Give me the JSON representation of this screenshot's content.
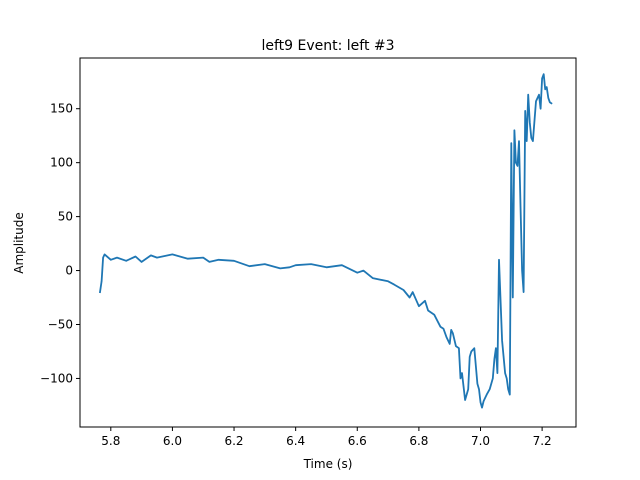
{
  "chart_data": {
    "type": "line",
    "title": "left9 Event: left #3",
    "xlabel": "Time (s)",
    "ylabel": "Amplitude",
    "xlim": [
      5.7,
      7.31
    ],
    "ylim": [
      -145,
      197
    ],
    "xticks": [
      5.8,
      6.0,
      6.2,
      6.4,
      6.6,
      6.8,
      7.0,
      7.2
    ],
    "yticks": [
      -100,
      -50,
      0,
      50,
      100,
      150
    ],
    "xtick_labels": [
      "5.8",
      "6.0",
      "6.2",
      "6.4",
      "6.6",
      "6.8",
      "7.0",
      "7.2"
    ],
    "ytick_labels": [
      "−100",
      "−50",
      "0",
      "50",
      "100",
      "150"
    ],
    "grid": false,
    "series": [
      {
        "color": "#1f77b4",
        "x": [
          5.765,
          5.77,
          5.775,
          5.78,
          5.8,
          5.82,
          5.85,
          5.88,
          5.9,
          5.93,
          5.95,
          6.0,
          6.05,
          6.1,
          6.12,
          6.15,
          6.2,
          6.25,
          6.3,
          6.35,
          6.38,
          6.4,
          6.45,
          6.5,
          6.55,
          6.6,
          6.62,
          6.65,
          6.7,
          6.72,
          6.75,
          6.77,
          6.78,
          6.8,
          6.82,
          6.83,
          6.85,
          6.87,
          6.88,
          6.89,
          6.9,
          6.905,
          6.91,
          6.92,
          6.93,
          6.935,
          6.94,
          6.95,
          6.96,
          6.965,
          6.97,
          6.98,
          6.99,
          6.995,
          7.0,
          7.005,
          7.01,
          7.02,
          7.03,
          7.04,
          7.045,
          7.05,
          7.055,
          7.06,
          7.07,
          7.08,
          7.085,
          7.09,
          7.095,
          7.1,
          7.105,
          7.11,
          7.115,
          7.12,
          7.125,
          7.13,
          7.135,
          7.14,
          7.145,
          7.15,
          7.155,
          7.16,
          7.165,
          7.17,
          7.18,
          7.19,
          7.195,
          7.2,
          7.205,
          7.21,
          7.215,
          7.22,
          7.225,
          7.23
        ],
        "y": [
          -20,
          -10,
          12,
          15,
          10,
          12,
          9,
          13,
          8,
          14,
          12,
          15,
          11,
          12,
          8,
          10,
          9,
          4,
          6,
          2,
          3,
          5,
          6,
          3,
          5,
          -2,
          0,
          -7,
          -10,
          -13,
          -18,
          -25,
          -20,
          -33,
          -28,
          -37,
          -41,
          -52,
          -54,
          -62,
          -68,
          -55,
          -58,
          -70,
          -72,
          -100,
          -95,
          -120,
          -110,
          -80,
          -75,
          -72,
          -105,
          -110,
          -122,
          -127,
          -121,
          -115,
          -110,
          -100,
          -82,
          -72,
          -95,
          10,
          -65,
          -95,
          -100,
          -110,
          -115,
          118,
          -25,
          130,
          100,
          97,
          120,
          60,
          0,
          -20,
          148,
          120,
          163,
          137,
          123,
          120,
          157,
          163,
          150,
          178,
          182,
          168,
          170,
          160,
          156,
          155
        ]
      }
    ]
  }
}
